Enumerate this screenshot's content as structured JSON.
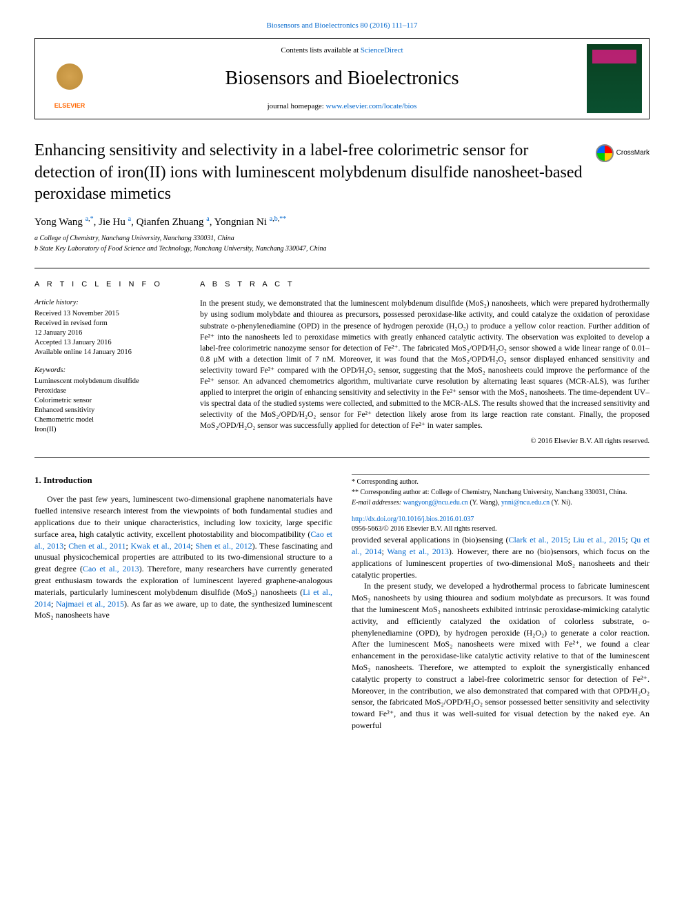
{
  "top_citation": "Biosensors and Bioelectronics 80 (2016) 111–117",
  "header": {
    "contents_prefix": "Contents lists available at ",
    "contents_link": "ScienceDirect",
    "journal_name": "Biosensors and Bioelectronics",
    "homepage_prefix": "journal homepage: ",
    "homepage_link": "www.elsevier.com/locate/bios",
    "elsevier_label": "ELSEVIER",
    "crossmark_label": "CrossMark"
  },
  "article": {
    "title": "Enhancing sensitivity and selectivity in a label-free colorimetric sensor for detection of iron(II) ions with luminescent molybdenum disulfide nanosheet-based peroxidase mimetics",
    "authors_html": "Yong Wang <sup><a href=\"#\">a</a>,<a href=\"#\">*</a></sup>, Jie Hu <sup><a href=\"#\">a</a></sup>, Qianfen Zhuang <sup><a href=\"#\">a</a></sup>, Yongnian Ni <sup><a href=\"#\">a</a>,<a href=\"#\">b</a>,<a href=\"#\">**</a></sup>",
    "affiliations": [
      "a College of Chemistry, Nanchang University, Nanchang 330031, China",
      "b State Key Laboratory of Food Science and Technology, Nanchang University, Nanchang 330047, China"
    ]
  },
  "info": {
    "heading": "A R T I C L E  I N F O",
    "history_label": "Article history:",
    "history": [
      "Received 13 November 2015",
      "Received in revised form",
      "12 January 2016",
      "Accepted 13 January 2016",
      "Available online 14 January 2016"
    ],
    "keywords_label": "Keywords:",
    "keywords": [
      "Luminescent molybdenum disulfide",
      "Peroxidase",
      "Colorimetric sensor",
      "Enhanced sensitivity",
      "Chemometric model",
      "Iron(II)"
    ]
  },
  "abstract": {
    "heading": "A B S T R A C T",
    "text": "In the present study, we demonstrated that the luminescent molybdenum disulfide (MoS₂) nanosheets, which were prepared hydrothermally by using sodium molybdate and thiourea as precursors, possessed peroxidase-like activity, and could catalyze the oxidation of peroxidase substrate o-phenylenediamine (OPD) in the presence of hydrogen peroxide (H₂O₂) to produce a yellow color reaction. Further addition of Fe²⁺ into the nanosheets led to peroxidase mimetics with greatly enhanced catalytic activity. The observation was exploited to develop a label-free colorimetric nanozyme sensor for detection of Fe²⁺. The fabricated MoS₂/OPD/H₂O₂ sensor showed a wide linear range of 0.01–0.8 μM with a detection limit of 7 nM. Moreover, it was found that the MoS₂/OPD/H₂O₂ sensor displayed enhanced sensitivity and selectivity toward Fe²⁺ compared with the OPD/H₂O₂ sensor, suggesting that the MoS₂ nanosheets could improve the performance of the Fe²⁺ sensor. An advanced chemometrics algorithm, multivariate curve resolution by alternating least squares (MCR-ALS), was further applied to interpret the origin of enhancing sensitivity and selectivity in the Fe²⁺ sensor with the MoS₂ nanosheets. The time-dependent UV–vis spectral data of the studied systems were collected, and submitted to the MCR-ALS. The results showed that the increased sensitivity and selectivity of the MoS₂/OPD/H₂O₂ sensor for Fe²⁺ detection likely arose from its large reaction rate constant. Finally, the proposed MoS₂/OPD/H₂O₂ sensor was successfully applied for detection of Fe²⁺ in water samples.",
    "copyright": "© 2016 Elsevier B.V. All rights reserved."
  },
  "body": {
    "section1_heading": "1. Introduction",
    "p1_pre": "Over the past few years, luminescent two-dimensional graphene nanomaterials have fuelled intensive research interest from the viewpoints of both fundamental studies and applications due to their unique characteristics, including low toxicity, large specific surface area, high catalytic activity, excellent photostability and biocompatibility (",
    "p1_links": [
      "Cao et al., 2013",
      "Chen et al., 2011",
      "Kwak et al., 2014",
      "Shen et al., 2012"
    ],
    "p1_mid1": "). These fascinating and unusual physicochemical properties are attributed to its two-dimensional structure to a great degree (",
    "p1_link_cao": "Cao et al., 2013",
    "p1_mid2": "). Therefore, many researchers have currently generated great enthusiasm towards the exploration of luminescent layered graphene-analogous materials, particularly luminescent molybdenum disulfide (MoS₂) nanosheets (",
    "p1_links2": [
      "Li et al., 2014",
      "Najmaei et al., 2015"
    ],
    "p1_mid3": "). As far as we aware, up to date, the synthesized luminescent MoS₂ nanosheets have ",
    "p1_cont": "provided several applications in (bio)sensing (",
    "p1_links3": [
      "Clark et al., 2015",
      "Liu et al., 2015",
      "Qu et al., 2014",
      "Wang et al., 2013"
    ],
    "p1_end": "). However, there are no (bio)sensors, which focus on the applications of luminescent properties of two-dimensional MoS₂ nanosheets and their catalytic properties.",
    "p2": "In the present study, we developed a hydrothermal process to fabricate luminescent MoS₂ nanosheets by using thiourea and sodium molybdate as precursors. It was found that the luminescent MoS₂ nanosheets exhibited intrinsic peroxidase-mimicking catalytic activity, and efficiently catalyzed the oxidation of colorless substrate, o-phenylenediamine (OPD), by hydrogen peroxide (H₂O₂) to generate a color reaction. After the luminescent MoS₂ nanosheets were mixed with Fe²⁺, we found a clear enhancement in the peroxidase-like catalytic activity relative to that of the luminescent MoS₂ nanosheets. Therefore, we attempted to exploit the synergistically enhanced catalytic property to construct a label-free colorimetric sensor for detection of Fe²⁺. Moreover, in the contribution, we also demonstrated that compared with that OPD/H₂O₂ sensor, the fabricated MoS₂/OPD/H₂O₂ sensor possessed better sensitivity and selectivity toward Fe²⁺, and thus it was well-suited for visual detection by the naked eye. An powerful"
  },
  "footnotes": {
    "corr1": "* Corresponding author.",
    "corr2": "** Corresponding author at: College of Chemistry, Nanchang University, Nanchang 330031, China.",
    "email_label": "E-mail addresses: ",
    "email1": "wangyong@ncu.edu.cn",
    "email1_name": " (Y. Wang), ",
    "email2": "ynni@ncu.edu.cn",
    "email2_name": " (Y. Ni).",
    "doi": "http://dx.doi.org/10.1016/j.bios.2016.01.037",
    "issn": "0956-5663/© 2016 Elsevier B.V. All rights reserved."
  },
  "colors": {
    "link": "#0066cc",
    "elsevier_orange": "#ff6600",
    "cover_bg": "#0a4020"
  }
}
